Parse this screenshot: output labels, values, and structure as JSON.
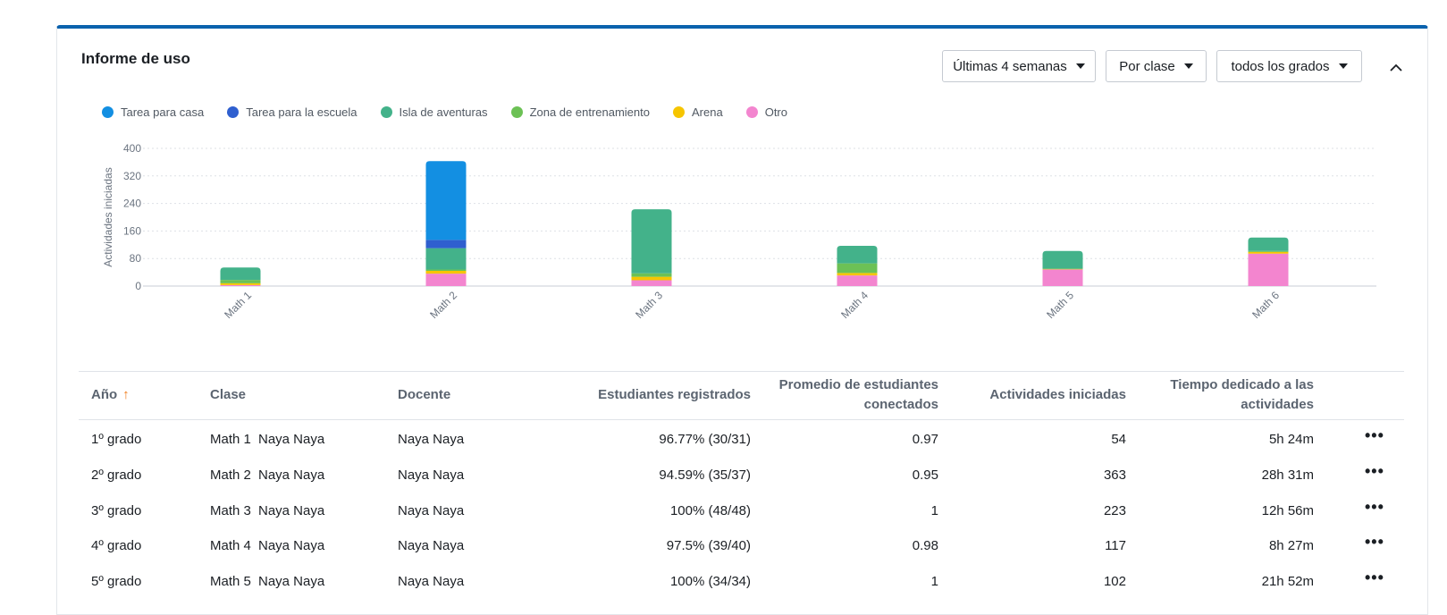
{
  "panel": {
    "title": "Informe de uso",
    "filters": {
      "period": "Últimas 4 semanas",
      "grouping": "Por clase",
      "grades": "todos los grados"
    }
  },
  "chart_data": {
    "type": "bar",
    "stacked": true,
    "ylabel": "Actividades iniciadas",
    "ylim": [
      0,
      400
    ],
    "yticks": [
      0,
      80,
      160,
      240,
      320,
      400
    ],
    "grid": true,
    "legend_position": "top-left",
    "categories": [
      "Math 1",
      "Math 2",
      "Math 3",
      "Math 4",
      "Math 5",
      "Math 6"
    ],
    "series": [
      {
        "name": "Otro",
        "color": "#f385cf",
        "values": [
          3,
          36,
          17,
          31,
          48,
          94
        ]
      },
      {
        "name": "Arena",
        "color": "#f6c500",
        "values": [
          5,
          8,
          10,
          7,
          1,
          5
        ]
      },
      {
        "name": "Zona de entrenamiento",
        "color": "#6cc155",
        "values": [
          10,
          4,
          10,
          28,
          2,
          3
        ]
      },
      {
        "name": "Isla de aventuras",
        "color": "#43b28a",
        "values": [
          36,
          62,
          186,
          51,
          51,
          39
        ]
      },
      {
        "name": "Tarea para la escuela",
        "color": "#2f5fcf",
        "values": [
          0,
          24,
          0,
          0,
          0,
          0
        ]
      },
      {
        "name": "Tarea para casa",
        "color": "#138fe2",
        "values": [
          0,
          229,
          0,
          0,
          0,
          0
        ]
      }
    ]
  },
  "legend": [
    {
      "label": "Tarea para casa",
      "color": "#138fe2"
    },
    {
      "label": "Tarea para la escuela",
      "color": "#2f5fcf"
    },
    {
      "label": "Isla de aventuras",
      "color": "#43b28a"
    },
    {
      "label": "Zona de entrenamiento",
      "color": "#6cc155"
    },
    {
      "label": "Arena",
      "color": "#f6c500"
    },
    {
      "label": "Otro",
      "color": "#f385cf"
    }
  ],
  "table": {
    "headers": {
      "year": "Año",
      "class": "Clase",
      "teacher": "Docente",
      "enrolled": "Estudiantes registrados",
      "avg_connected_1": "Promedio de estudiantes",
      "avg_connected_2": "conectados",
      "activities": "Actividades iniciadas",
      "time_1": "Tiempo dedicado a las",
      "time_2": "actividades"
    },
    "rows": [
      {
        "year": "1º grado",
        "class": "Math 1",
        "class_teacher": "Naya  Naya",
        "teacher": "Naya  Naya",
        "enrolled": "96.77% (30/31)",
        "avg": "0.97",
        "activities": "54",
        "time": "5h 24m"
      },
      {
        "year": "2º grado",
        "class": "Math 2",
        "class_teacher": "Naya  Naya",
        "teacher": "Naya  Naya",
        "enrolled": "94.59% (35/37)",
        "avg": "0.95",
        "activities": "363",
        "time": "28h 31m"
      },
      {
        "year": "3º grado",
        "class": "Math 3",
        "class_teacher": "Naya  Naya",
        "teacher": "Naya  Naya",
        "enrolled": "100% (48/48)",
        "avg": "1",
        "activities": "223",
        "time": "12h 56m"
      },
      {
        "year": "4º grado",
        "class": "Math 4",
        "class_teacher": "Naya  Naya",
        "teacher": "Naya  Naya",
        "enrolled": "97.5% (39/40)",
        "avg": "0.98",
        "activities": "117",
        "time": "8h 27m"
      },
      {
        "year": "5º grado",
        "class": "Math 5",
        "class_teacher": "Naya  Naya",
        "teacher": "Naya  Naya",
        "enrolled": "100% (34/34)",
        "avg": "1",
        "activities": "102",
        "time": "21h 52m"
      }
    ]
  },
  "icons": {
    "sort": "arrow-up-icon",
    "collapse": "chevron-up-icon",
    "row_menu": "more-horizontal-icon",
    "dropdown": "caret-down-icon"
  }
}
